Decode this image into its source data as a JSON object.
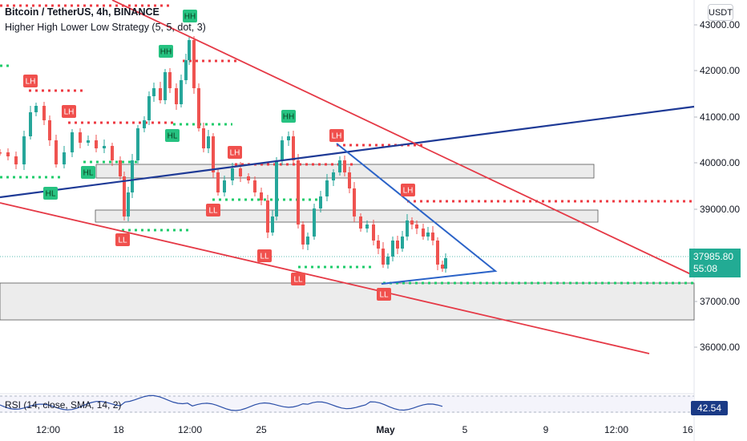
{
  "header": {
    "title": "Bitcoin / TetherUS, 4h, BINANCE",
    "strategy": "Higher High Lower Low Strategy (5, 5, dot, 3)"
  },
  "currency": "USDT",
  "price": {
    "value": "37985.80",
    "countdown": "55:08"
  },
  "y_axis": [
    "43000.00",
    "42000.00",
    "41000.00",
    "40000.00",
    "39000.00",
    "37000.00",
    "36000.00"
  ],
  "x_axis": [
    {
      "label": "12:00",
      "bold": false
    },
    {
      "label": "18",
      "bold": false
    },
    {
      "label": "12:00",
      "bold": false
    },
    {
      "label": "25",
      "bold": false
    },
    {
      "label": "May",
      "bold": true
    },
    {
      "label": "5",
      "bold": false
    },
    {
      "label": "9",
      "bold": false
    },
    {
      "label": "12:00",
      "bold": false
    },
    {
      "label": "16",
      "bold": false
    }
  ],
  "rsi": {
    "label": "RSI (14, close, SMA, 14, 2)",
    "value": "42.54"
  },
  "markers": [
    {
      "text": "HH",
      "type": "high"
    },
    {
      "text": "HH",
      "type": "high"
    },
    {
      "text": "HH",
      "type": "high"
    },
    {
      "text": "LH",
      "type": "lower"
    },
    {
      "text": "LH",
      "type": "lower"
    },
    {
      "text": "LH",
      "type": "lower"
    },
    {
      "text": "LH",
      "type": "lower"
    },
    {
      "text": "LH",
      "type": "lower"
    },
    {
      "text": "HL",
      "type": "high"
    },
    {
      "text": "HL",
      "type": "high"
    },
    {
      "text": "HL",
      "type": "high"
    },
    {
      "text": "LL",
      "type": "lower"
    },
    {
      "text": "LL",
      "type": "lower"
    },
    {
      "text": "LL",
      "type": "lower"
    },
    {
      "text": "LL",
      "type": "lower"
    },
    {
      "text": "LL",
      "type": "lower"
    }
  ],
  "colors": {
    "up": "#26a69a",
    "down": "#ef5350",
    "marker_green": "#26c281",
    "marker_red": "#f0504d",
    "trend_red": "#e53946",
    "trend_blue": "#1e3a96",
    "triangle_blue": "#2b63c8",
    "level_dot_green": "#1fcc6b",
    "level_dot_red": "#ee3b43",
    "price_label": "#22ab94",
    "rsi_line": "#2b4fa8"
  }
}
